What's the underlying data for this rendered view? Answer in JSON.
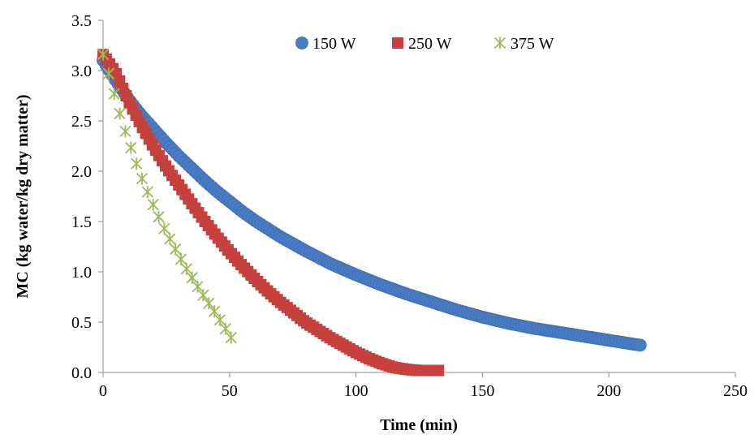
{
  "chart_data": {
    "type": "scatter",
    "title": "",
    "xlabel": "Time (min)",
    "ylabel": "MC (kg water/kg dry matter)",
    "xlim": [
      0,
      250
    ],
    "ylim": [
      0,
      3.5
    ],
    "xticks": [
      "0",
      "50",
      "100",
      "150",
      "200",
      "250"
    ],
    "yticks": [
      "0.0",
      "0.5",
      "1.0",
      "1.5",
      "2.0",
      "2.5",
      "3.0",
      "3.5"
    ],
    "grid": false,
    "legend_position": "top",
    "series": [
      {
        "name": "150 W",
        "marker": "circle",
        "color": "#4a7cc4",
        "x": [
          0,
          5,
          10,
          15,
          20,
          25,
          30,
          35,
          40,
          45,
          50,
          55,
          60,
          70,
          80,
          90,
          100,
          110,
          120,
          130,
          140,
          150,
          160,
          170,
          180,
          190,
          200,
          205,
          210,
          213
        ],
        "y": [
          3.1,
          2.9,
          2.72,
          2.56,
          2.42,
          2.28,
          2.15,
          2.03,
          1.91,
          1.8,
          1.7,
          1.6,
          1.51,
          1.35,
          1.21,
          1.08,
          0.97,
          0.87,
          0.78,
          0.7,
          0.62,
          0.55,
          0.49,
          0.44,
          0.4,
          0.36,
          0.32,
          0.3,
          0.28,
          0.27
        ]
      },
      {
        "name": "250 W",
        "marker": "square",
        "color": "#c6403d",
        "x": [
          0,
          5,
          10,
          15,
          20,
          25,
          30,
          35,
          40,
          45,
          50,
          55,
          60,
          65,
          70,
          75,
          80,
          85,
          90,
          95,
          100,
          105,
          110,
          115,
          120,
          125,
          130,
          133
        ],
        "y": [
          3.16,
          2.98,
          2.7,
          2.46,
          2.24,
          2.04,
          1.86,
          1.68,
          1.51,
          1.35,
          1.2,
          1.06,
          0.93,
          0.81,
          0.7,
          0.6,
          0.5,
          0.42,
          0.34,
          0.27,
          0.2,
          0.14,
          0.09,
          0.05,
          0.03,
          0.02,
          0.02,
          0.02
        ]
      },
      {
        "name": "375 W",
        "marker": "star",
        "color": "#9bbb59",
        "x": [
          0,
          3,
          6,
          9,
          12,
          15,
          18,
          21,
          24,
          27,
          30,
          33,
          36,
          39,
          42,
          45,
          48,
          51
        ],
        "y": [
          3.16,
          2.9,
          2.62,
          2.38,
          2.16,
          1.95,
          1.77,
          1.6,
          1.44,
          1.3,
          1.16,
          1.03,
          0.91,
          0.79,
          0.68,
          0.57,
          0.45,
          0.33
        ]
      }
    ]
  }
}
